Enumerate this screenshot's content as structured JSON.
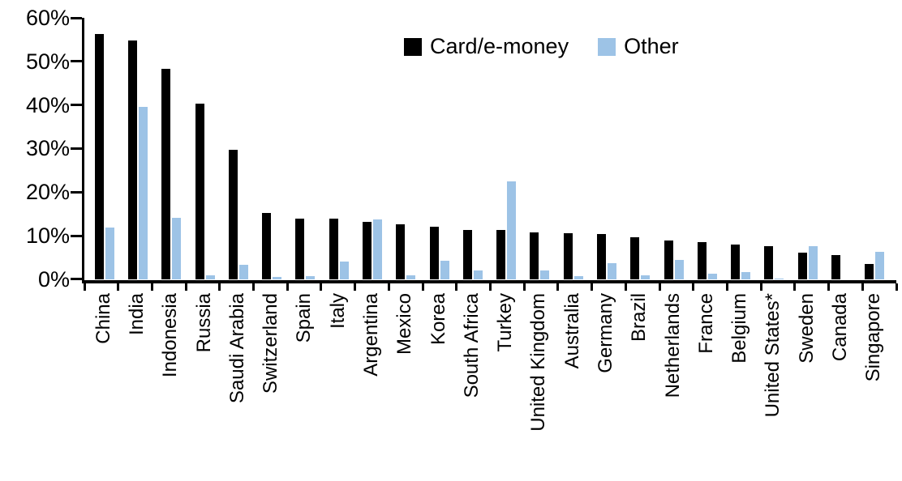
{
  "chart_data": {
    "type": "bar",
    "title": "",
    "categories": [
      "China",
      "India",
      "Indonesia",
      "Russia",
      "Saudi Arabia",
      "Switzerland",
      "Spain",
      "Italy",
      "Argentina",
      "Mexico",
      "Korea",
      "South Africa",
      "Turkey",
      "United Kingdom",
      "Australia",
      "Germany",
      "Brazil",
      "Netherlands",
      "France",
      "Belgium",
      "United States*",
      "Sweden",
      "Canada",
      "Singapore"
    ],
    "series": [
      {
        "name": "Card/e-money",
        "color": "#000000",
        "values": [
          56.5,
          55.0,
          48.5,
          40.5,
          29.8,
          15.4,
          14.0,
          14.0,
          13.2,
          12.8,
          12.2,
          11.5,
          11.5,
          10.9,
          10.7,
          10.5,
          9.8,
          9.1,
          8.6,
          8.0,
          7.7,
          6.3,
          5.7,
          3.6
        ]
      },
      {
        "name": "Other",
        "color": "#9DC3E6",
        "values": [
          12.0,
          39.6,
          14.3,
          1.0,
          3.5,
          0.7,
          0.9,
          4.2,
          13.8,
          1.1,
          4.3,
          2.1,
          22.5,
          2.1,
          0.9,
          3.8,
          1.0,
          4.6,
          1.4,
          1.8,
          0.3,
          7.7,
          0.0,
          6.4
        ]
      }
    ],
    "y_tick_labels": [
      "60%",
      "50%",
      "40%",
      "30%",
      "20%",
      "10%",
      "0%"
    ],
    "ylim": [
      0,
      60
    ],
    "y_tick_step": 10,
    "grid": "off",
    "legend_position": "top-center",
    "axis_color": "#000000",
    "xlabel": "",
    "ylabel": ""
  }
}
